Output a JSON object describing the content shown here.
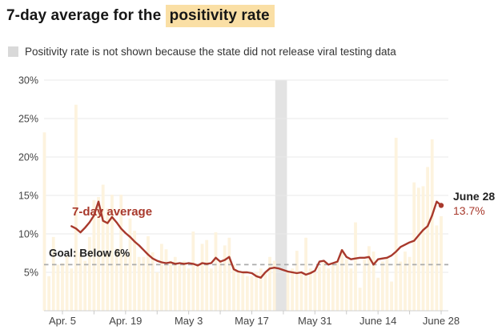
{
  "title": {
    "prefix": "7-day average for the ",
    "highlight": "positivity rate"
  },
  "legend": {
    "text": "Positivity rate is not shown because the state did not release viral testing data",
    "swatch_color": "#d9d9d9"
  },
  "colors": {
    "accent_red": "#a8392c",
    "bar_fill": "#fdf3de",
    "no_data_band": "#e3e3e3",
    "title_highlight": "#fadfa5",
    "grid": "#eaeaea",
    "baseline": "#d0d0d0",
    "tick": "#c9c9c9",
    "goal_dash": "#ababab",
    "axis_text": "#444",
    "dark_text": "#222"
  },
  "chart_data": {
    "type": "bar+line composite",
    "title": "7-day average for the positivity rate",
    "ylim": [
      0,
      30
    ],
    "y_ticks": [
      5,
      10,
      15,
      20,
      25,
      30
    ],
    "y_tick_format": "percent",
    "grid": "horizontal only",
    "x_start_date": "Apr. 1",
    "x_minor_tick_days": [
      4,
      11,
      18,
      25,
      32,
      39,
      46,
      53,
      60,
      67,
      74,
      81,
      88
    ],
    "x_tick_labels": [
      {
        "day": 4,
        "label": "Apr. 5"
      },
      {
        "day": 18,
        "label": "Apr. 19"
      },
      {
        "day": 32,
        "label": "May 3"
      },
      {
        "day": 46,
        "label": "May 17"
      },
      {
        "day": 60,
        "label": "May 31"
      },
      {
        "day": 74,
        "label": "June 14"
      },
      {
        "day": 88,
        "label": "June 28"
      }
    ],
    "goal_line": {
      "value": 6,
      "label": "Goal: Below 6%"
    },
    "line_label": "7-day average",
    "no_data_band": {
      "start_day": 51.2,
      "end_day": 53.8,
      "missing_bar_days": [
        52,
        53
      ]
    },
    "annotation": {
      "date": "June 28",
      "value": "13.7%"
    },
    "series": [
      {
        "name": "7-day average",
        "points": [
          [
            6,
            11.0
          ],
          [
            7,
            10.7
          ],
          [
            8,
            10.2
          ],
          [
            9,
            10.8
          ],
          [
            10,
            11.5
          ],
          [
            11,
            12.4
          ],
          [
            12,
            14.2
          ],
          [
            13,
            11.7
          ],
          [
            14,
            11.4
          ],
          [
            15,
            12.2
          ],
          [
            16,
            11.5
          ],
          [
            17,
            10.7
          ],
          [
            18,
            10.1
          ],
          [
            19,
            9.6
          ],
          [
            20,
            9.0
          ],
          [
            21,
            8.5
          ],
          [
            22,
            7.9
          ],
          [
            23,
            7.3
          ],
          [
            24,
            6.8
          ],
          [
            25,
            6.5
          ],
          [
            26,
            6.3
          ],
          [
            27,
            6.2
          ],
          [
            28,
            6.3
          ],
          [
            29,
            6.1
          ],
          [
            30,
            6.2
          ],
          [
            31,
            6.1
          ],
          [
            32,
            6.2
          ],
          [
            33,
            6.1
          ],
          [
            34,
            5.9
          ],
          [
            35,
            6.2
          ],
          [
            36,
            6.1
          ],
          [
            37,
            6.2
          ],
          [
            38,
            6.9
          ],
          [
            39,
            6.4
          ],
          [
            40,
            6.6
          ],
          [
            41,
            7.0
          ],
          [
            42,
            5.4
          ],
          [
            43,
            5.1
          ],
          [
            44,
            5.0
          ],
          [
            45,
            5.0
          ],
          [
            46,
            4.9
          ],
          [
            47,
            4.5
          ],
          [
            48,
            4.3
          ],
          [
            49,
            5.0
          ],
          [
            50,
            5.5
          ],
          [
            51,
            5.6
          ],
          [
            52,
            5.5
          ],
          [
            53,
            5.3
          ],
          [
            54,
            5.1
          ],
          [
            55,
            5.0
          ],
          [
            56,
            4.9
          ],
          [
            57,
            5.0
          ],
          [
            58,
            4.7
          ],
          [
            59,
            4.9
          ],
          [
            60,
            5.2
          ],
          [
            61,
            6.4
          ],
          [
            62,
            6.5
          ],
          [
            63,
            6.0
          ],
          [
            64,
            6.2
          ],
          [
            65,
            6.4
          ],
          [
            66,
            7.9
          ],
          [
            67,
            7.0
          ],
          [
            68,
            6.7
          ],
          [
            69,
            6.8
          ],
          [
            70,
            6.9
          ],
          [
            71,
            6.9
          ],
          [
            72,
            7.0
          ],
          [
            73,
            6.0
          ],
          [
            74,
            6.7
          ],
          [
            75,
            6.8
          ],
          [
            76,
            6.9
          ],
          [
            77,
            7.2
          ],
          [
            78,
            7.7
          ],
          [
            79,
            8.3
          ],
          [
            80,
            8.6
          ],
          [
            81,
            8.9
          ],
          [
            82,
            9.1
          ],
          [
            83,
            9.8
          ],
          [
            84,
            10.5
          ],
          [
            85,
            11.0
          ],
          [
            86,
            12.4
          ],
          [
            87,
            14.2
          ],
          [
            88,
            13.7
          ]
        ]
      }
    ],
    "bars": {
      "name": "daily positivity rate",
      "values_by_day": [
        23.2,
        4.5,
        9.6,
        6.0,
        6.2,
        7.1,
        5.5,
        26.8,
        7.6,
        6.5,
        9.6,
        14.4,
        14.8,
        16.4,
        13.3,
        15.1,
        8.1,
        15.1,
        7.6,
        12.0,
        10.4,
        7.0,
        7.0,
        9.7,
        7.6,
        5.0,
        8.7,
        8.0,
        6.5,
        7.0,
        6.0,
        6.5,
        5.5,
        10.3,
        6.0,
        8.7,
        9.2,
        5.5,
        10.2,
        6.5,
        8.5,
        9.5,
        6.0,
        5.0,
        5.0,
        4.5,
        4.5,
        5.0,
        5.5,
        5.0,
        7.0,
        6.5,
        null,
        null,
        5.0,
        5.5,
        7.8,
        5.0,
        9.5,
        5.5,
        5.0,
        5.7,
        6.4,
        5.5,
        6.0,
        6.5,
        8.0,
        6.7,
        5.5,
        11.5,
        3.0,
        6.7,
        8.4,
        7.7,
        4.3,
        6.4,
        7.0,
        3.8,
        22.5,
        6.4,
        7.7,
        7.0,
        16.7,
        16.0,
        16.2,
        18.7,
        22.3,
        11.1,
        12.3
      ]
    }
  }
}
